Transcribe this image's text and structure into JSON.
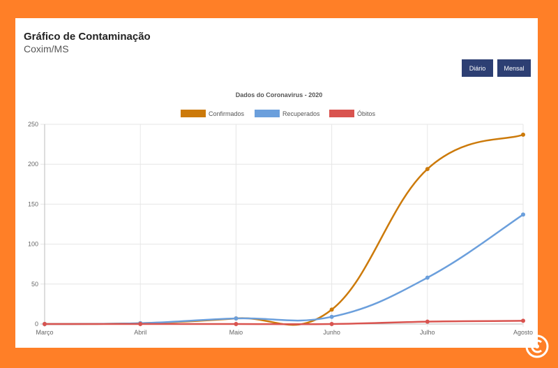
{
  "header": {
    "title": "Gráfico de Contaminação",
    "subtitle": "Coxim/MS"
  },
  "buttons": {
    "daily_label": "Diário",
    "monthly_label": "Mensal"
  },
  "chart_data": {
    "type": "line",
    "title": "Dados do Coronavirus - 2020",
    "categories": [
      "Março",
      "Abril",
      "Maio",
      "Junho",
      "Julho",
      "Agosto"
    ],
    "yticks": [
      "0",
      "50",
      "100",
      "150",
      "200",
      "250"
    ],
    "ylim": [
      0,
      250
    ],
    "grid": true,
    "legend_position": "top",
    "series": [
      {
        "name": "Confirmados",
        "color": "#cc7a0a",
        "values": [
          0,
          1,
          7,
          18,
          194,
          237
        ]
      },
      {
        "name": "Recuperados",
        "color": "#6b9fdc",
        "values": [
          0,
          1,
          7,
          9,
          58,
          137
        ]
      },
      {
        "name": "Óbitos",
        "color": "#d9534f",
        "values": [
          0,
          0,
          0,
          0,
          3,
          4
        ]
      }
    ]
  },
  "colors": {
    "frame": "#ff7f27",
    "button": "#2d3f73"
  },
  "icons": {
    "corner_badge": "copyright-like-logo-icon"
  }
}
